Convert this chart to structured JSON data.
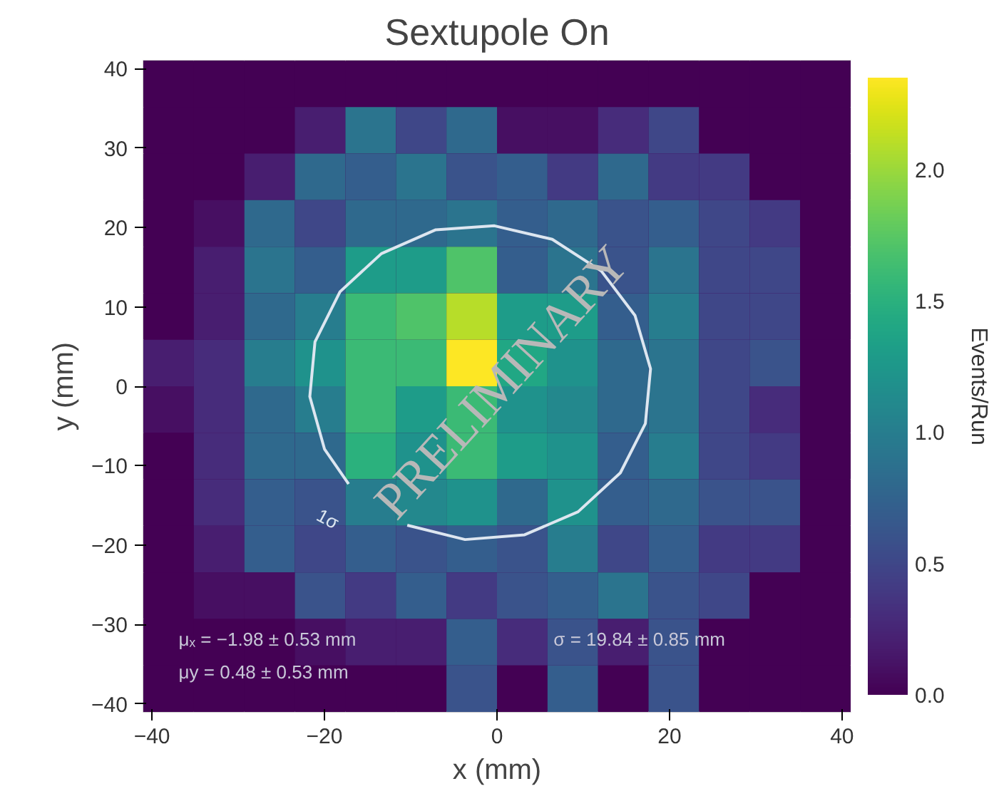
{
  "chart_data": {
    "type": "heatmap",
    "title": "Sextupole On",
    "xlabel": "x (mm)",
    "ylabel": "y (mm)",
    "clabel": "Events/Run",
    "cells": [
      [
        0,
        0,
        0,
        0,
        0,
        0,
        0,
        0,
        0,
        0,
        0,
        0,
        0,
        0
      ],
      [
        0,
        0,
        0,
        0.2,
        0.9,
        0.5,
        0.8,
        0.1,
        0.1,
        0.3,
        0.5,
        0,
        0,
        0
      ],
      [
        0,
        0,
        0.2,
        0.8,
        0.7,
        0.9,
        0.6,
        0.7,
        0.4,
        0.8,
        0.4,
        0.4,
        0,
        0
      ],
      [
        0,
        0.1,
        0.8,
        0.5,
        0.8,
        0.8,
        0.9,
        0.7,
        0.8,
        0.6,
        0.7,
        0.5,
        0.4,
        0
      ],
      [
        0,
        0.2,
        0.9,
        0.7,
        1.3,
        1.3,
        1.7,
        0.7,
        0.9,
        0.6,
        0.9,
        0.5,
        0.5,
        0
      ],
      [
        0,
        0.2,
        0.8,
        1.0,
        1.6,
        1.7,
        2.1,
        1.3,
        1.3,
        0.7,
        1.0,
        0.5,
        0.5,
        0
      ],
      [
        0.2,
        0.3,
        1.0,
        1.2,
        1.6,
        1.6,
        2.35,
        1.4,
        1.2,
        0.8,
        0.9,
        0.5,
        0.6,
        0
      ],
      [
        0.1,
        0.3,
        0.8,
        1.0,
        1.6,
        1.3,
        1.6,
        1.2,
        1.1,
        0.8,
        0.9,
        0.5,
        0.3,
        0
      ],
      [
        0,
        0.3,
        0.8,
        0.8,
        1.5,
        1.2,
        1.6,
        1.3,
        1.2,
        0.7,
        1.0,
        0.5,
        0.4,
        0
      ],
      [
        0,
        0.3,
        0.7,
        0.6,
        1.0,
        1.1,
        1.2,
        0.8,
        1.2,
        0.7,
        0.8,
        0.6,
        0.6,
        0
      ],
      [
        0,
        0.2,
        0.7,
        0.5,
        0.7,
        0.6,
        0.7,
        0.6,
        1.0,
        0.5,
        0.7,
        0.4,
        0.4,
        0
      ],
      [
        0,
        0.1,
        0.1,
        0.6,
        0.4,
        0.7,
        0.4,
        0.6,
        0.7,
        0.9,
        0.6,
        0.5,
        0,
        0
      ],
      [
        0,
        0,
        0,
        0.1,
        0.2,
        0.2,
        0.7,
        0.3,
        0.6,
        0.2,
        0.6,
        0,
        0,
        0
      ],
      [
        0,
        0,
        0,
        0,
        0,
        0,
        0.6,
        0,
        0.7,
        0,
        0.6,
        0,
        0,
        0
      ]
    ],
    "clim": [
      0,
      2.35
    ],
    "cticks": [
      {
        "value": 0,
        "label": "0.0"
      },
      0.5,
      {
        "value": 1,
        "label": "1.0"
      },
      1.5,
      {
        "value": 2,
        "label": "2.0"
      }
    ],
    "xlim": [
      -41,
      41
    ],
    "ylim": [
      -41,
      41
    ],
    "xticks": [
      -40,
      -20,
      0,
      20,
      40
    ],
    "yticks": [
      -40,
      -30,
      -20,
      -10,
      0,
      10,
      20,
      30,
      40
    ],
    "series": [
      {
        "type": "line",
        "color": "#dde6f0",
        "x": [
          -10.4,
          -3.7,
          3.2,
          9.4,
          14.3,
          17.2,
          17.8,
          16.0,
          12.1,
          6.4,
          -0.3,
          -7.1,
          -13.4,
          -18.2,
          -21.1,
          -21.7,
          -20.0,
          -17.2
        ],
        "values": [
          -17.5,
          -19.3,
          -18.7,
          -15.8,
          -10.9,
          -4.7,
          2.2,
          8.9,
          14.5,
          18.5,
          20.2,
          19.7,
          16.7,
          11.9,
          5.6,
          -1.3,
          -7.9,
          -12.3
        ]
      }
    ],
    "annotations": [
      "1σ",
      "μₓ = −1.98 ± 0.53 mm",
      "σ = 19.84 ± 0.85 mm",
      "μy = 0.48 ± 0.53 mm",
      "PRELIMINARY"
    ],
    "grid": false
  }
}
